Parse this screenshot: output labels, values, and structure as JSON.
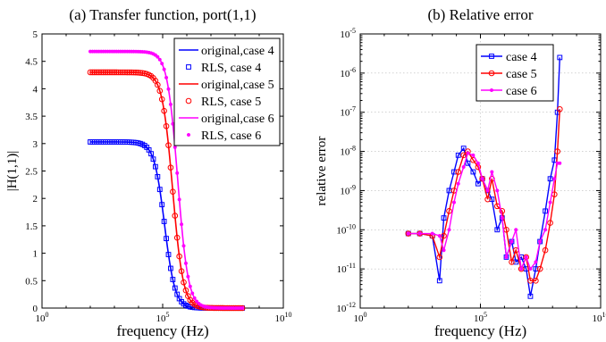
{
  "chart_data": [
    {
      "type": "line",
      "title": "(a) Transfer function, port(1,1)",
      "xlabel": "frequency (Hz)",
      "ylabel": "|H(1,1)|",
      "xscale": "log",
      "xlim": [
        1,
        10000000000.0
      ],
      "ylim": [
        0,
        5
      ],
      "xticks": [
        1,
        100000,
        10000000000.0
      ],
      "xtick_labels": [
        [
          "10",
          "0"
        ],
        [
          "10",
          "5"
        ],
        [
          "10",
          "10"
        ]
      ],
      "yticks": [
        0,
        0.5,
        1,
        1.5,
        2,
        2.5,
        3,
        3.5,
        4,
        4.5,
        5
      ],
      "ytick_labels": [
        "0",
        "0.5",
        "1",
        "1.5",
        "2",
        "2.5",
        "3",
        "3.5",
        "4",
        "4.5",
        "5"
      ],
      "grid": false,
      "legend_position": "top-right",
      "model": {
        "x_start": 100,
        "x_end": 200000000.0
      },
      "series": [
        {
          "name": "original,case 4",
          "color": "#0000ff",
          "style": "line",
          "dc": 3.03,
          "fc": 120000
        },
        {
          "name": "RLS, case 4",
          "color": "#0000ff",
          "style": "marker",
          "marker": "square",
          "dc": 3.03,
          "fc": 120000
        },
        {
          "name": "original,case 5",
          "color": "#ff0000",
          "style": "line",
          "dc": 4.3,
          "fc": 260000
        },
        {
          "name": "RLS, case 5",
          "color": "#ff0000",
          "style": "marker",
          "marker": "circle",
          "dc": 4.3,
          "fc": 260000
        },
        {
          "name": "original,case 6",
          "color": "#ff00ff",
          "style": "line",
          "dc": 4.68,
          "fc": 420000
        },
        {
          "name": "RLS, case 6",
          "color": "#ff00ff",
          "style": "marker",
          "marker": "dot",
          "dc": 4.68,
          "fc": 420000
        }
      ]
    },
    {
      "type": "line",
      "title": "(b) Relative error",
      "xlabel": "frequency (Hz)",
      "ylabel": "relative error",
      "xscale": "log",
      "yscale": "log",
      "xlim": [
        1,
        10000000000.0
      ],
      "ylim": [
        1e-12,
        1e-05
      ],
      "xticks": [
        1,
        100000,
        10000000000.0
      ],
      "xtick_labels": [
        [
          "10",
          "0"
        ],
        [
          "10",
          "5"
        ],
        [
          "10",
          "10"
        ]
      ],
      "yticks": [
        1e-12,
        1e-11,
        1e-10,
        1e-09,
        1e-08,
        1e-07,
        1e-06,
        1e-05
      ],
      "ytick_labels": [
        [
          "10",
          "-12"
        ],
        [
          "10",
          "-11"
        ],
        [
          "10",
          "-10"
        ],
        [
          "10",
          "-9"
        ],
        [
          "10",
          "-8"
        ],
        [
          "10",
          "-7"
        ],
        [
          "10",
          "-6"
        ],
        [
          "10",
          "-5"
        ]
      ],
      "grid": true,
      "legend_position": "top-left",
      "series": [
        {
          "name": "case 4",
          "color": "#0000ff",
          "marker": "square",
          "x": [
            100,
            300,
            1000,
            2000,
            3000,
            5000,
            8000,
            12000,
            20000,
            30000,
            50000,
            80000,
            120000,
            200000,
            300000,
            500000,
            800000,
            1200000,
            2000000,
            3000000,
            5000000,
            8000000,
            12000000,
            20000000,
            30000000,
            50000000,
            80000000,
            120000000,
            160000000,
            200000000
          ],
          "y": [
            8e-11,
            8e-11,
            7e-11,
            5e-12,
            2e-10,
            1e-09,
            3e-09,
            8e-09,
            1.2e-08,
            5e-09,
            3e-09,
            1.5e-09,
            2e-09,
            1e-09,
            6e-10,
            1e-10,
            2e-10,
            2e-11,
            5e-11,
            1.5e-11,
            2e-11,
            1e-11,
            2e-12,
            1e-11,
            5e-11,
            3e-10,
            2e-09,
            6e-09,
            1e-07,
            2.5e-06
          ]
        },
        {
          "name": "case 5",
          "color": "#ff0000",
          "marker": "circle",
          "x": [
            100,
            300,
            1000,
            2000,
            3000,
            5000,
            8000,
            12000,
            20000,
            30000,
            50000,
            80000,
            120000,
            200000,
            300000,
            500000,
            800000,
            1200000,
            2000000,
            3000000,
            5000000,
            8000000,
            12000000,
            20000000,
            30000000,
            50000000,
            80000000,
            120000000,
            160000000,
            200000000
          ],
          "y": [
            8e-11,
            8e-11,
            7e-11,
            2e-11,
            7e-11,
            3e-10,
            1e-09,
            3e-09,
            8e-09,
            1e-08,
            6e-09,
            4e-09,
            2e-09,
            6e-10,
            2e-09,
            4e-10,
            3e-10,
            1e-10,
            1.5e-11,
            3e-11,
            1e-11,
            2e-11,
            5e-12,
            5e-12,
            1e-11,
            3e-11,
            1.5e-10,
            8e-10,
            1e-08,
            1.2e-07
          ]
        },
        {
          "name": "case 6",
          "color": "#ff00ff",
          "marker": "dot",
          "x": [
            100,
            300,
            1000,
            2000,
            3000,
            5000,
            8000,
            12000,
            20000,
            30000,
            50000,
            80000,
            120000,
            200000,
            300000,
            500000,
            800000,
            1200000,
            2000000,
            3000000,
            5000000,
            8000000,
            12000000,
            20000000,
            30000000,
            50000000,
            80000000,
            120000000,
            160000000,
            200000000
          ],
          "y": [
            8e-11,
            8e-11,
            8e-11,
            7e-11,
            3e-11,
            1e-10,
            5e-10,
            1.5e-09,
            4e-09,
            9e-09,
            8e-09,
            5e-09,
            2e-09,
            1e-09,
            3e-09,
            1e-09,
            2e-10,
            2e-11,
            5e-11,
            1e-10,
            1e-11,
            2e-11,
            1e-11,
            1.5e-11,
            5e-11,
            1e-10,
            5e-10,
            2e-09,
            5e-09,
            5e-09
          ]
        }
      ]
    }
  ]
}
